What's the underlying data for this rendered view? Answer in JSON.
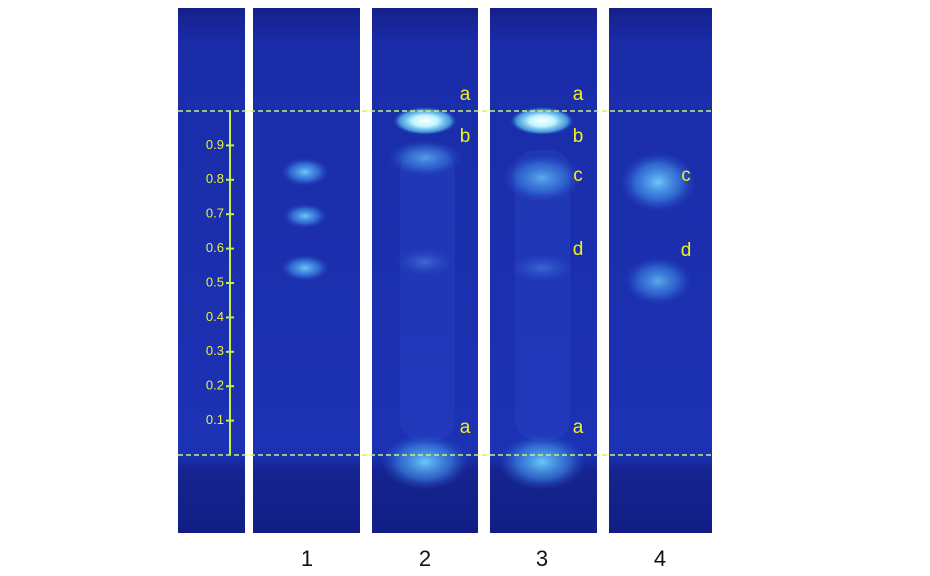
{
  "scale": {
    "ticks": [
      0.1,
      0.2,
      0.3,
      0.4,
      0.5,
      0.6,
      0.7,
      0.8,
      0.9
    ]
  },
  "lanes": [
    {
      "label": "1"
    },
    {
      "label": "2",
      "spot_labels": [
        "a",
        "b",
        "a"
      ]
    },
    {
      "label": "3",
      "spot_labels": [
        "a",
        "b",
        "c",
        "d",
        "a"
      ]
    },
    {
      "label": "4",
      "spot_labels": [
        "c",
        "d"
      ]
    }
  ]
}
